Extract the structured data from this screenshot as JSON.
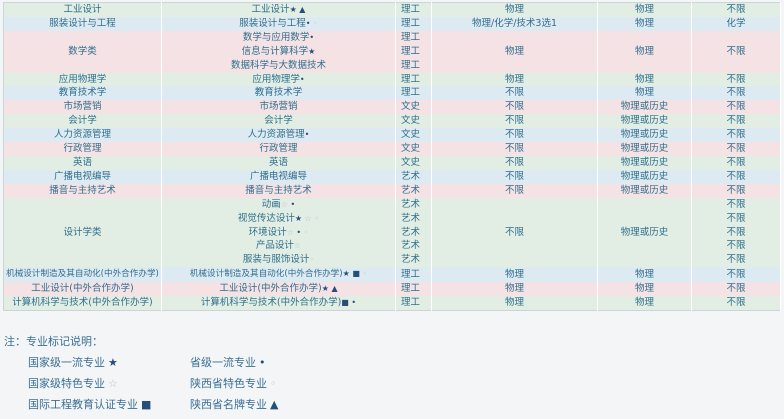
{
  "colors": {
    "text": "#2f6f8c",
    "mark": "#254f7a",
    "green": "#e2eee4",
    "blue": "#deeaf2",
    "pink": "#f5e2e5"
  },
  "groups": [
    {
      "category": "工业设计",
      "bg": "green",
      "col4": "物理",
      "col5": "物理",
      "col6": "不限",
      "rows": [
        {
          "major": "工业设计",
          "marks": "★ ▲",
          "type": "理工"
        }
      ]
    },
    {
      "category": "服装设计与工程",
      "bg": "blue",
      "col4": "物理/化学/技术3选1",
      "col5": "物理",
      "col6": "化学",
      "rows": [
        {
          "major": "服装设计与工程",
          "marks": "◆ ◦",
          "type": "理工"
        }
      ]
    },
    {
      "category": "数学类",
      "bg": "pink",
      "col4": "物理",
      "col5": "物理",
      "col6": "不限",
      "rows": [
        {
          "major": "数学与应用数学",
          "marks": "◆",
          "type": "理工"
        },
        {
          "major": "信息与计算科学",
          "marks": "★",
          "type": "理工"
        },
        {
          "major": "数据科学与大数据技术",
          "marks": "",
          "type": "理工"
        }
      ]
    },
    {
      "category": "应用物理学",
      "bg": "green",
      "col4": "物理",
      "col5": "物理",
      "col6": "不限",
      "rows": [
        {
          "major": "应用物理学",
          "marks": "◆",
          "type": "理工"
        }
      ]
    },
    {
      "category": "教育技术学",
      "bg": "blue",
      "col4": "不限",
      "col5": "物理",
      "col6": "不限",
      "rows": [
        {
          "major": "教育技术学",
          "marks": "",
          "type": "理工"
        }
      ]
    },
    {
      "category": "市场营销",
      "bg": "pink",
      "col4": "不限",
      "col5": "物理或历史",
      "col6": "不限",
      "rows": [
        {
          "major": "市场营销",
          "marks": "",
          "type": "文史"
        }
      ]
    },
    {
      "category": "会计学",
      "bg": "green",
      "col4": "不限",
      "col5": "物理或历史",
      "col6": "不限",
      "rows": [
        {
          "major": "会计学",
          "marks": "",
          "type": "文史"
        }
      ]
    },
    {
      "category": "人力资源管理",
      "bg": "blue",
      "col4": "不限",
      "col5": "物理或历史",
      "col6": "不限",
      "rows": [
        {
          "major": "人力资源管理",
          "marks": "◆",
          "type": "文史"
        }
      ]
    },
    {
      "category": "行政管理",
      "bg": "pink",
      "col4": "不限",
      "col5": "物理或历史",
      "col6": "不限",
      "rows": [
        {
          "major": "行政管理",
          "marks": "",
          "type": "文史"
        }
      ]
    },
    {
      "category": "英语",
      "bg": "green",
      "col4": "不限",
      "col5": "物理或历史",
      "col6": "不限",
      "rows": [
        {
          "major": "英语",
          "marks": "",
          "type": "文史"
        }
      ]
    },
    {
      "category": "广播电视编导",
      "bg": "blue",
      "col4": "不限",
      "col5": "物理或历史",
      "col6": "不限",
      "rows": [
        {
          "major": "广播电视编导",
          "marks": "",
          "type": "艺术"
        }
      ]
    },
    {
      "category": "播音与主持艺术",
      "bg": "pink",
      "col4": "不限",
      "col5": "物理或历史",
      "col6": "不限",
      "rows": [
        {
          "major": "播音与主持艺术",
          "marks": "",
          "type": "艺术"
        }
      ]
    },
    {
      "category": "设计学类",
      "bg": "green",
      "col4": "不限",
      "col5": "物理或历史",
      "rows": [
        {
          "major": "动画",
          "marks": "☆ ◆",
          "type": "艺术",
          "col6": "不限"
        },
        {
          "major": "视觉传达设计",
          "marks": "★ ☆ ◦",
          "type": "艺术",
          "col6": "不限"
        },
        {
          "major": "环境设计",
          "marks": "☆ ◆ ◦",
          "type": "艺术",
          "col6": "不限"
        },
        {
          "major": "产品设计",
          "marks": "☆",
          "type": "艺术",
          "col6": "不限"
        },
        {
          "major": "服装与服饰设计",
          "marks": "◦",
          "type": "艺术",
          "col6": "不限"
        }
      ]
    },
    {
      "category": "机械设计制造及其自动化(中外合作办学)",
      "bg": "blue",
      "small": true,
      "col4": "物理",
      "col5": "物理",
      "col6": "不限",
      "rows": [
        {
          "major": "机械设计制造及其自动化(中外合作办学)",
          "marks": "★ ■ ◦",
          "type": "理工"
        }
      ]
    },
    {
      "category": "工业设计(中外合作办学)",
      "bg": "pink",
      "col4": "物理",
      "col5": "物理",
      "col6": "不限",
      "rows": [
        {
          "major": "工业设计(中外合作办学)",
          "marks": "★ ▲",
          "type": "理工"
        }
      ]
    },
    {
      "category": "计算机科学与技术(中外合作办学)",
      "bg": "green",
      "col4": "物理",
      "col5": "物理",
      "col6": "不限",
      "rows": [
        {
          "major": "计算机科学与技术(中外合作办学)",
          "marks": "■ ◆",
          "type": "理工"
        }
      ]
    }
  ],
  "notes": {
    "title": "注：专业标记说明：",
    "legend": [
      {
        "label": "国家级一流专业",
        "mark": "★"
      },
      {
        "label": "省级一流专业",
        "mark": "◆"
      },
      {
        "label": "国家级特色专业",
        "mark": "☆"
      },
      {
        "label": "陕西省特色专业",
        "mark": "◦"
      },
      {
        "label": "国际工程教育认证专业",
        "mark": "■"
      },
      {
        "label": "陕西省名牌专业",
        "mark": "▲"
      }
    ]
  }
}
